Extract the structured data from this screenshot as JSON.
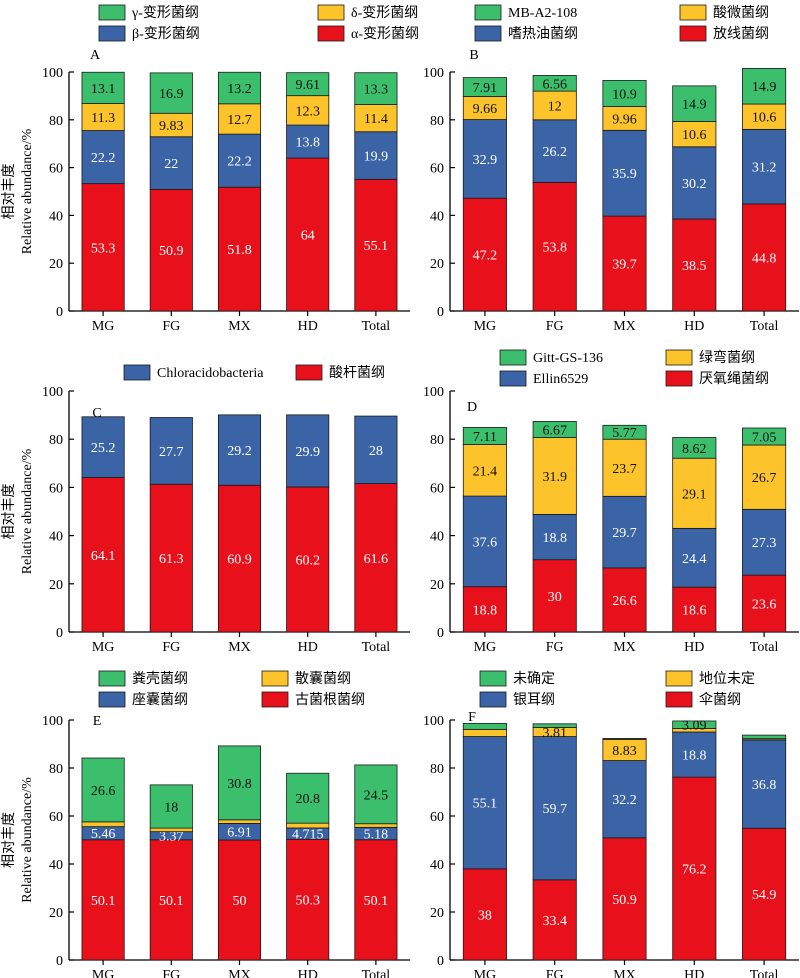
{
  "ylabel_cn": "相对丰度",
  "ylabel_en": "Relative abundance/%",
  "categories": [
    "MG",
    "FG",
    "MX",
    "HD",
    "Total"
  ],
  "colors": {
    "green": "#3cbf6c",
    "yellow": "#fdc32a",
    "blue": "#3b64a6",
    "red": "#e8101b"
  },
  "chart_data": [
    {
      "type": "bar",
      "panel": "A",
      "stacked": true,
      "ylim": [
        0,
        100
      ],
      "yticks": [
        "0",
        "20",
        "40",
        "60",
        "80",
        "100"
      ],
      "categories": [
        "MG",
        "FG",
        "MX",
        "HD",
        "Total"
      ],
      "series": [
        {
          "name": "α-变形菌纲",
          "color": "#e8101b",
          "values": [
            53.3,
            50.9,
            51.8,
            64,
            55.1
          ],
          "labels": [
            "53.3",
            "50.9",
            "51.8",
            "64",
            "55.1"
          ]
        },
        {
          "name": "β-变形菌纲",
          "color": "#3b64a6",
          "values": [
            22.2,
            22,
            22.2,
            13.8,
            19.9
          ],
          "labels": [
            "22.2",
            "22",
            "22.2",
            "13.8",
            "19.9"
          ]
        },
        {
          "name": "δ-变形菌纲",
          "color": "#fdc32a",
          "values": [
            11.3,
            9.83,
            12.7,
            12.3,
            11.4
          ],
          "labels": [
            "11.3",
            "9.83",
            "12.7",
            "12.3",
            "11.4"
          ]
        },
        {
          "name": "γ-变形菌纲",
          "color": "#3cbf6c",
          "values": [
            13.1,
            16.9,
            13.2,
            9.61,
            13.3
          ],
          "labels": [
            "13.1",
            "16.9",
            "13.2",
            "9.61",
            "13.3"
          ]
        }
      ]
    },
    {
      "type": "bar",
      "panel": "B",
      "stacked": true,
      "ylim": [
        0,
        100
      ],
      "yticks": [
        "0",
        "20",
        "40",
        "60",
        "80",
        "100"
      ],
      "categories": [
        "MG",
        "FG",
        "MX",
        "HD",
        "Total"
      ],
      "series": [
        {
          "name": "放线菌纲",
          "color": "#e8101b",
          "values": [
            47.2,
            53.8,
            39.7,
            38.5,
            44.8
          ],
          "labels": [
            "47.2",
            "53.8",
            "39.7",
            "38.5",
            "44.8"
          ]
        },
        {
          "name": "嗜热油菌纲",
          "color": "#3b64a6",
          "values": [
            32.9,
            26.2,
            35.9,
            30.2,
            31.2
          ],
          "labels": [
            "32.9",
            "26.2",
            "35.9",
            "30.2",
            "31.2"
          ]
        },
        {
          "name": "酸微菌纲",
          "color": "#fdc32a",
          "values": [
            9.66,
            12,
            9.96,
            10.6,
            10.6
          ],
          "labels": [
            "9.66",
            "12",
            "9.96",
            "10.6",
            "10.6"
          ]
        },
        {
          "name": "MB-A2-108",
          "color": "#3cbf6c",
          "values": [
            7.91,
            6.56,
            10.9,
            14.9,
            14.9
          ],
          "labels": [
            "7.91",
            "6.56",
            "10.9",
            "14.9",
            "14.9"
          ]
        }
      ]
    },
    {
      "type": "bar",
      "panel": "C",
      "stacked": true,
      "ylim": [
        0,
        100
      ],
      "yticks": [
        "0",
        "20",
        "40",
        "60",
        "80",
        "100"
      ],
      "categories": [
        "MG",
        "FG",
        "MX",
        "HD",
        "Total"
      ],
      "series": [
        {
          "name": "酸杆菌纲",
          "color": "#e8101b",
          "values": [
            64.1,
            61.3,
            60.9,
            60.2,
            61.6
          ],
          "labels": [
            "64.1",
            "61.3",
            "60.9",
            "60.2",
            "61.6"
          ]
        },
        {
          "name": "Chloracidobacteria",
          "color": "#3b64a6",
          "values": [
            25.2,
            27.7,
            29.2,
            29.9,
            28
          ],
          "labels": [
            "25.2",
            "27.7",
            "29.2",
            "29.9",
            "28"
          ]
        }
      ]
    },
    {
      "type": "bar",
      "panel": "D",
      "stacked": true,
      "ylim": [
        0,
        100
      ],
      "yticks": [
        "0",
        "20",
        "40",
        "60",
        "80",
        "100"
      ],
      "categories": [
        "MG",
        "FG",
        "MX",
        "HD",
        "Total"
      ],
      "series": [
        {
          "name": "厌氧绳菌纲",
          "color": "#e8101b",
          "values": [
            18.8,
            30,
            26.6,
            18.6,
            23.6
          ],
          "labels": [
            "18.8",
            "30",
            "26.6",
            "18.6",
            "23.6"
          ]
        },
        {
          "name": "Ellin6529",
          "color": "#3b64a6",
          "values": [
            37.6,
            18.8,
            29.7,
            24.4,
            27.3
          ],
          "labels": [
            "37.6",
            "18.8",
            "29.7",
            "24.4",
            "27.3"
          ]
        },
        {
          "name": "绿弯菌纲",
          "color": "#fdc32a",
          "values": [
            21.4,
            31.9,
            23.7,
            29.1,
            26.7
          ],
          "labels": [
            "21.4",
            "31.9",
            "23.7",
            "29.1",
            "26.7"
          ]
        },
        {
          "name": "Gitt-GS-136",
          "color": "#3cbf6c",
          "values": [
            7.11,
            6.67,
            5.77,
            8.62,
            7.05
          ],
          "labels": [
            "7.11",
            "6.67",
            "5.77",
            "8.62",
            "7.05"
          ]
        }
      ]
    },
    {
      "type": "bar",
      "panel": "E",
      "stacked": true,
      "ylim": [
        0,
        100
      ],
      "yticks": [
        "0",
        "20",
        "40",
        "60",
        "80",
        "100"
      ],
      "categories": [
        "MG",
        "FG",
        "MX",
        "HD",
        "Total"
      ],
      "series": [
        {
          "name": "古菌根菌纲",
          "color": "#e8101b",
          "values": [
            50.1,
            50.1,
            50,
            50.3,
            50.1
          ],
          "labels": [
            "50.1",
            "50.1",
            "50",
            "50.3",
            "50.1"
          ]
        },
        {
          "name": "座囊菌纲",
          "color": "#3b64a6",
          "values": [
            5.46,
            3.37,
            6.91,
            4.715,
            5.18
          ],
          "labels": [
            "5.46",
            "3.37",
            "6.91",
            "4.715",
            "5.18"
          ]
        },
        {
          "name": "散囊菌纲",
          "color": "#fdc32a",
          "values": [
            2,
            1.5,
            1.5,
            2,
            1.5
          ],
          "labels": [
            "",
            "",
            "",
            "",
            ""
          ]
        },
        {
          "name": "粪壳菌纲",
          "color": "#3cbf6c",
          "values": [
            26.6,
            18,
            30.8,
            20.8,
            24.5
          ],
          "labels": [
            "26.6",
            "18",
            "30.8",
            "20.8",
            "24.5"
          ]
        }
      ]
    },
    {
      "type": "bar",
      "panel": "F",
      "stacked": true,
      "ylim": [
        0,
        100
      ],
      "yticks": [
        "0",
        "20",
        "40",
        "60",
        "80",
        "100"
      ],
      "categories": [
        "MG",
        "FG",
        "MX",
        "HD",
        "Total"
      ],
      "series": [
        {
          "name": "伞菌纲",
          "color": "#e8101b",
          "values": [
            38,
            33.4,
            50.9,
            76.2,
            54.9
          ],
          "labels": [
            "38",
            "33.4",
            "50.9",
            "76.2",
            "54.9"
          ]
        },
        {
          "name": "银耳纲",
          "color": "#3b64a6",
          "values": [
            55.1,
            59.7,
            32.2,
            18.8,
            36.8
          ],
          "labels": [
            "55.1",
            "59.7",
            "32.2",
            "18.8",
            "36.8"
          ]
        },
        {
          "name": "地位未定",
          "color": "#fdc32a",
          "values": [
            3,
            3.81,
            8.83,
            1.5,
            0.5
          ],
          "labels": [
            "",
            "3.81",
            "8.83",
            "",
            ""
          ]
        },
        {
          "name": "未确定",
          "color": "#3cbf6c",
          "values": [
            2.5,
            1.5,
            0.4,
            3.09,
            1.5
          ],
          "labels": [
            "",
            "",
            "",
            "3.09",
            ""
          ]
        }
      ]
    }
  ],
  "legends": [
    {
      "panel": "A",
      "items": [
        {
          "name": "γ-变形菌纲",
          "color": "#3cbf6c"
        },
        {
          "name": "δ-变形菌纲",
          "color": "#fdc32a"
        },
        {
          "name": "β-变形菌纲",
          "color": "#3b64a6"
        },
        {
          "name": "α-变形菌纲",
          "color": "#e8101b"
        }
      ]
    },
    {
      "panel": "B",
      "items": [
        {
          "name": "MB-A2-108",
          "color": "#3cbf6c"
        },
        {
          "name": "酸微菌纲",
          "color": "#fdc32a"
        },
        {
          "name": "嗜热油菌纲",
          "color": "#3b64a6"
        },
        {
          "name": "放线菌纲",
          "color": "#e8101b"
        }
      ]
    },
    {
      "panel": "C",
      "items": [
        {
          "name": "Chloracidobacteria",
          "color": "#3b64a6"
        },
        {
          "name": "酸杆菌纲",
          "color": "#e8101b"
        }
      ]
    },
    {
      "panel": "D",
      "items": [
        {
          "name": "Gitt-GS-136",
          "color": "#3cbf6c"
        },
        {
          "name": "绿弯菌纲",
          "color": "#fdc32a"
        },
        {
          "name": "Ellin6529",
          "color": "#3b64a6"
        },
        {
          "name": "厌氧绳菌纲",
          "color": "#e8101b"
        }
      ]
    },
    {
      "panel": "E",
      "items": [
        {
          "name": "粪壳菌纲",
          "color": "#3cbf6c"
        },
        {
          "name": "散囊菌纲",
          "color": "#fdc32a"
        },
        {
          "name": "座囊菌纲",
          "color": "#3b64a6"
        },
        {
          "name": "古菌根菌纲",
          "color": "#e8101b"
        }
      ]
    },
    {
      "panel": "F",
      "items": [
        {
          "name": "未确定",
          "color": "#3cbf6c"
        },
        {
          "name": "地位未定",
          "color": "#fdc32a"
        },
        {
          "name": "银耳纲",
          "color": "#3b64a6"
        },
        {
          "name": "伞菌纲",
          "color": "#e8101b"
        }
      ]
    }
  ]
}
